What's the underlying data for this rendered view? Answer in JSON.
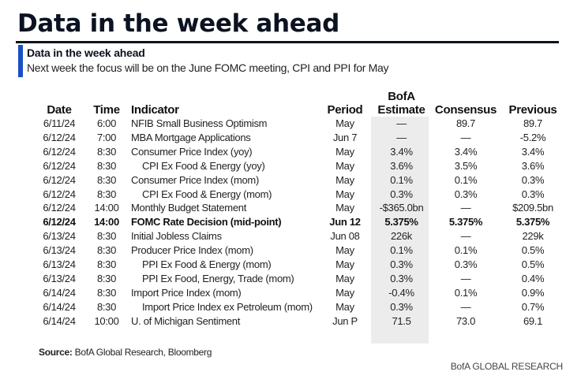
{
  "header": {
    "title": "Data in the week ahead",
    "subtitle": "Data in the week ahead",
    "description": "Next week the focus will be on the June FOMC meeting, CPI and PPI for May",
    "accent_color": "#1750c4"
  },
  "table": {
    "columns": {
      "date": "Date",
      "time": "Time",
      "indicator": "Indicator",
      "period": "Period",
      "estimate_line1": "BofA",
      "estimate_line2": "Estimate",
      "consensus": "Consensus",
      "previous": "Previous"
    },
    "rows": [
      {
        "date": "6/11/24",
        "time": "6:00",
        "indicator": "NFIB Small Business Optimism",
        "period": "May",
        "estimate": "—",
        "consensus": "89.7",
        "previous": "89.7"
      },
      {
        "date": "6/12/24",
        "time": "7:00",
        "indicator": "MBA Mortgage Applications",
        "period": "Jun 7",
        "estimate": "—",
        "consensus": "—",
        "previous": "-5.2%"
      },
      {
        "date": "6/12/24",
        "time": "8:30",
        "indicator": "Consumer Price Index (yoy)",
        "period": "May",
        "estimate": "3.4%",
        "consensus": "3.4%",
        "previous": "3.4%"
      },
      {
        "date": "6/12/24",
        "time": "8:30",
        "indicator": "CPI Ex Food & Energy (yoy)",
        "period": "May",
        "estimate": "3.6%",
        "consensus": "3.5%",
        "previous": "3.6%"
      },
      {
        "date": "6/12/24",
        "time": "8:30",
        "indicator": "Consumer Price Index (mom)",
        "period": "May",
        "estimate": "0.1%",
        "consensus": "0.1%",
        "previous": "0.3%"
      },
      {
        "date": "6/12/24",
        "time": "8:30",
        "indicator": "CPI Ex Food & Energy (mom)",
        "period": "May",
        "estimate": "0.3%",
        "consensus": "0.3%",
        "previous": "0.3%"
      },
      {
        "date": "6/12/24",
        "time": "14:00",
        "indicator": "Monthly Budget Statement",
        "period": "May",
        "estimate": "-$365.0bn",
        "consensus": "—",
        "previous": "$209.5bn"
      },
      {
        "date": "6/12/24",
        "time": "14:00",
        "indicator": "FOMC Rate Decision (mid-point)",
        "period": "Jun 12",
        "estimate": "5.375%",
        "consensus": "5.375%",
        "previous": "5.375%"
      },
      {
        "date": "6/13/24",
        "time": "8:30",
        "indicator": "Initial Jobless Claims",
        "period": "Jun 08",
        "estimate": "226k",
        "consensus": "—",
        "previous": "229k"
      },
      {
        "date": "6/13/24",
        "time": "8:30",
        "indicator": "Producer Price Index (mom)",
        "period": "May",
        "estimate": "0.1%",
        "consensus": "0.1%",
        "previous": "0.5%"
      },
      {
        "date": "6/13/24",
        "time": "8:30",
        "indicator": "PPI Ex Food & Energy (mom)",
        "period": "May",
        "estimate": "0.3%",
        "consensus": "0.3%",
        "previous": "0.5%"
      },
      {
        "date": "6/13/24",
        "time": "8:30",
        "indicator": "PPI Ex Food, Energy, Trade (mom)",
        "period": "May",
        "estimate": "0.3%",
        "consensus": "—",
        "previous": "0.4%"
      },
      {
        "date": "6/14/24",
        "time": "8:30",
        "indicator": "Import Price Index (mom)",
        "period": "May",
        "estimate": "-0.4%",
        "consensus": "0.1%",
        "previous": "0.9%"
      },
      {
        "date": "6/14/24",
        "time": "8:30",
        "indicator": "Import Price Index ex Petroleum (mom)",
        "period": "May",
        "estimate": "0.3%",
        "consensus": "—",
        "previous": "0.7%"
      },
      {
        "date": "6/14/24",
        "time": "10:00",
        "indicator": "U. of Michigan Sentiment",
        "period": "Jun P",
        "estimate": "71.5",
        "consensus": "73.0",
        "previous": "69.1"
      }
    ]
  },
  "footer": {
    "source_label": "Source:",
    "source_text": " BofA Global Research, Bloomberg",
    "brand": "BofA GLOBAL RESEARCH"
  }
}
